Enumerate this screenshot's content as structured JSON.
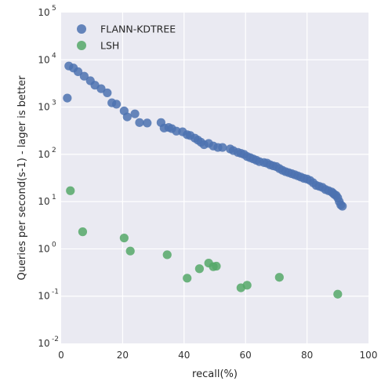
{
  "chart_data": {
    "type": "scatter",
    "xlabel": "recall(%)",
    "ylabel": "Queries per second(s-1) - lager is better",
    "xlim": [
      0,
      100
    ],
    "ylim": [
      0.01,
      100000
    ],
    "yscale": "log",
    "grid": true,
    "legend_position": "top-left",
    "x_ticks": [
      "0",
      "20",
      "40",
      "60",
      "80",
      "100"
    ],
    "y_ticks": [
      {
        "base": "10",
        "exp": "-2"
      },
      {
        "base": "10",
        "exp": "-1"
      },
      {
        "base": "10",
        "exp": "0"
      },
      {
        "base": "10",
        "exp": "1"
      },
      {
        "base": "10",
        "exp": "2"
      },
      {
        "base": "10",
        "exp": "3"
      },
      {
        "base": "10",
        "exp": "4"
      },
      {
        "base": "10",
        "exp": "5"
      }
    ],
    "series": [
      {
        "name": "FLANN-KDTREE",
        "color": "#4c72b0",
        "points": [
          [
            2,
            1550
          ],
          [
            2.5,
            7400
          ],
          [
            4,
            6700
          ],
          [
            5.5,
            5600
          ],
          [
            7.5,
            4500
          ],
          [
            9.5,
            3600
          ],
          [
            11,
            2900
          ],
          [
            13,
            2450
          ],
          [
            15,
            2000
          ],
          [
            16.5,
            1230
          ],
          [
            18,
            1150
          ],
          [
            20.5,
            830
          ],
          [
            21.5,
            620
          ],
          [
            24,
            720
          ],
          [
            25.5,
            470
          ],
          [
            28,
            460
          ],
          [
            32.5,
            470
          ],
          [
            33.5,
            360
          ],
          [
            35,
            370
          ],
          [
            36,
            350
          ],
          [
            37.5,
            310
          ],
          [
            39.5,
            300
          ],
          [
            41,
            260
          ],
          [
            42,
            250
          ],
          [
            43.5,
            220
          ],
          [
            44.5,
            200
          ],
          [
            45.5,
            180
          ],
          [
            46.5,
            160
          ],
          [
            48,
            170
          ],
          [
            49.5,
            150
          ],
          [
            51,
            140
          ],
          [
            52.5,
            140
          ],
          [
            55,
            130
          ],
          [
            56,
            120
          ],
          [
            57.5,
            110
          ],
          [
            58.5,
            105
          ],
          [
            59.5,
            100
          ],
          [
            60.5,
            90
          ],
          [
            61.5,
            85
          ],
          [
            62.5,
            80
          ],
          [
            63.5,
            75
          ],
          [
            64.5,
            70
          ],
          [
            66,
            67
          ],
          [
            67,
            65
          ],
          [
            68,
            60
          ],
          [
            69,
            57
          ],
          [
            70,
            55
          ],
          [
            71,
            50
          ],
          [
            72,
            46
          ],
          [
            73,
            43
          ],
          [
            74,
            41
          ],
          [
            75,
            39
          ],
          [
            76,
            37
          ],
          [
            77,
            35
          ],
          [
            78,
            33
          ],
          [
            79,
            31
          ],
          [
            80,
            30
          ],
          [
            81,
            28
          ],
          [
            82,
            25
          ],
          [
            83,
            22
          ],
          [
            84,
            21
          ],
          [
            85,
            20
          ],
          [
            86,
            18
          ],
          [
            87,
            17
          ],
          [
            88,
            16
          ],
          [
            88.5,
            15
          ],
          [
            89,
            14
          ],
          [
            89.5,
            13.5
          ],
          [
            90,
            12
          ],
          [
            90.5,
            10
          ],
          [
            91,
            8.5
          ],
          [
            91.5,
            8
          ]
        ]
      },
      {
        "name": "LSH",
        "color": "#55a868",
        "points": [
          [
            3,
            17
          ],
          [
            7,
            2.3
          ],
          [
            20.5,
            1.7
          ],
          [
            22.5,
            0.9
          ],
          [
            34.5,
            0.75
          ],
          [
            41,
            0.24
          ],
          [
            45,
            0.38
          ],
          [
            48,
            0.5
          ],
          [
            49.5,
            0.42
          ],
          [
            50.5,
            0.43
          ],
          [
            58.5,
            0.15
          ],
          [
            60.5,
            0.17
          ],
          [
            71,
            0.25
          ],
          [
            90,
            0.11
          ]
        ]
      }
    ]
  }
}
